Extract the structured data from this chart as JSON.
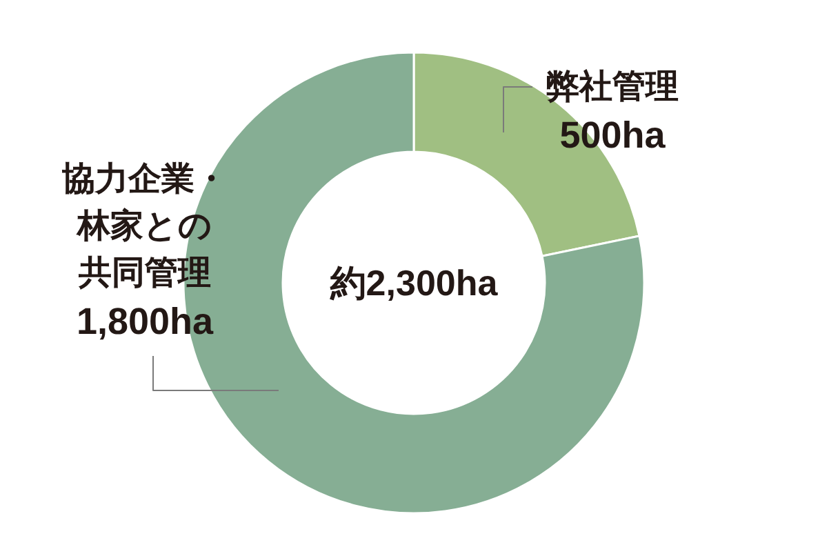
{
  "chart_data": {
    "type": "donut",
    "categories": [
      "弊社管理",
      "協力企業・林家との共同管理"
    ],
    "values": [
      500,
      1800
    ],
    "value_labels": [
      "500ha",
      "1,800ha"
    ],
    "colors": [
      "#a0bf82",
      "#86ae94"
    ],
    "annotations": [
      "約2,300ha"
    ]
  }
}
